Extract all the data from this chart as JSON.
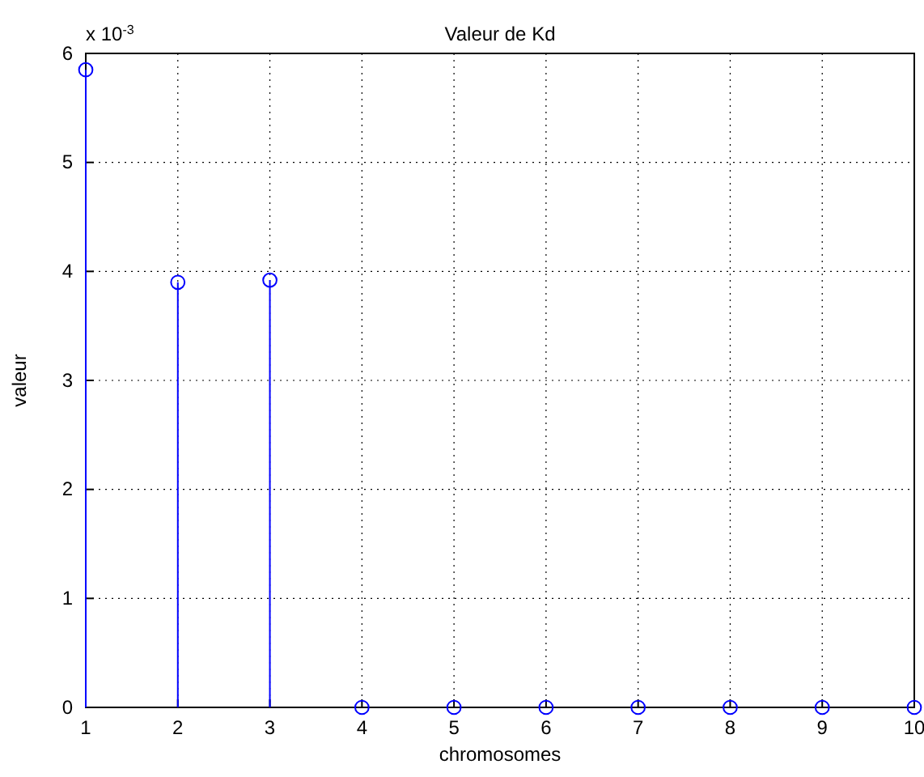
{
  "chart_data": {
    "type": "lollipop",
    "title": "Valeur de Kd",
    "xlabel": "chromosomes",
    "ylabel": "valeur",
    "x": [
      1,
      2,
      3,
      4,
      5,
      6,
      7,
      8,
      9,
      10
    ],
    "series": [
      {
        "color": "#0000ff",
        "values": [
          5.85,
          3.9,
          3.92,
          0,
          0,
          0,
          0,
          0,
          0,
          0
        ]
      }
    ],
    "xlim": [
      1,
      10
    ],
    "xticks": [
      1,
      2,
      3,
      4,
      5,
      6,
      7,
      8,
      9,
      10
    ],
    "ylim": [
      0,
      6
    ],
    "yticks": [
      0,
      1,
      2,
      3,
      4,
      5,
      6
    ],
    "annotations": [
      "x 10$^{-3}$"
    ],
    "grid": true,
    "marker": "circle"
  }
}
